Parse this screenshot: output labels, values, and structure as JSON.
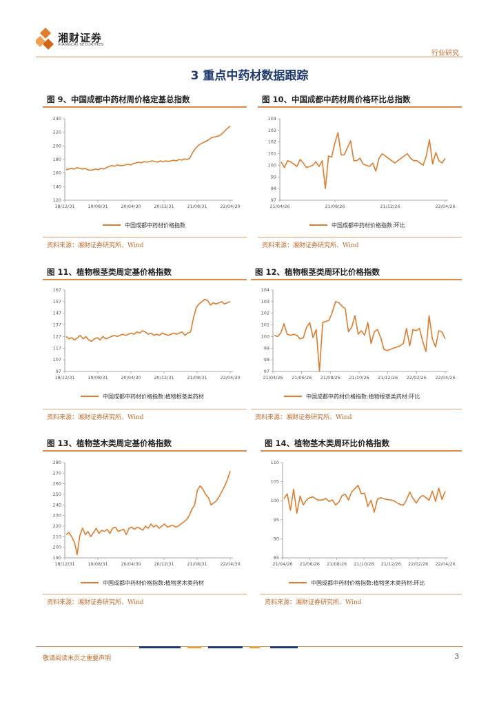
{
  "header": {
    "logo_cn": "湘财证券",
    "logo_en": "XIANGCAI SECURITIES",
    "category": "行业研究"
  },
  "section_title": "3 重点中药材数据跟踪",
  "footer": {
    "disclaimer": "敬请阅读末页之重要声明",
    "page_number": "3"
  },
  "colors": {
    "line": "#e07b2a",
    "rule": "#d98a4a",
    "source": "#c06a2a",
    "title": "#1f3b73"
  },
  "figures": [
    {
      "title": "图 9、中国成都中药材周价格定基总指数",
      "source": "资料来源：湘财证券研究所、Wind"
    },
    {
      "title": "图 10、中国成都中药材周价格环比总指数",
      "source": "资料来源：湘财证券研究所、Wind"
    },
    {
      "title": "图 11、植物根茎类周定基价格指数",
      "source": "资料来源：湘财证券研究所、Wind"
    },
    {
      "title": "图 12、植物根茎类周环比价格指数",
      "source": "资料来源：湘财证券研究所、Wind"
    },
    {
      "title": "图 13、植物茎木类周定基价格指数",
      "source": "资料来源：湘财证券研究所、Wind"
    },
    {
      "title": "图 14、植物茎木类周环比价格指数",
      "source": "资料来源：湘财证券研究所、Wind"
    }
  ],
  "chart_data": [
    {
      "type": "line",
      "x_ticks": [
        "18/12/31",
        "19/08/31",
        "20/04/30",
        "20/12/31",
        "21/08/31",
        "22/04/30"
      ],
      "y_ticks": [
        120,
        140,
        160,
        180,
        200,
        220,
        240
      ],
      "ylim": [
        120,
        240
      ],
      "legend": "中国成都中药材价格指数",
      "values": [
        165,
        166,
        167,
        166,
        168,
        167,
        166,
        167,
        165,
        164,
        165,
        166,
        165,
        167,
        166,
        168,
        170,
        171,
        170,
        172,
        171,
        171,
        172,
        173,
        172,
        174,
        175,
        176,
        175,
        177,
        176,
        177,
        178,
        177,
        176,
        178,
        177,
        178,
        177,
        178,
        179,
        178,
        180,
        179,
        181,
        180,
        182,
        190,
        196,
        200,
        203,
        205,
        207,
        209,
        212,
        213,
        214,
        215,
        218,
        222,
        226,
        229
      ]
    },
    {
      "type": "line",
      "x_ticks": [
        "21/04/26",
        "21/08/26",
        "21/12/26",
        "22/04/26"
      ],
      "y_ticks": [
        97,
        98,
        99,
        100,
        101,
        102,
        103,
        104
      ],
      "ylim": [
        97,
        104
      ],
      "legend": "中国成都中药材价格指数:环比",
      "values": [
        100.3,
        99.8,
        100.4,
        100.3,
        100.1,
        99.9,
        100.5,
        100.2,
        99.8,
        99.9,
        100.0,
        100.3,
        99.9,
        100.4,
        98.0,
        100.8,
        100.7,
        101.9,
        102.8,
        100.9,
        100.9,
        101.5,
        102.1,
        100.4,
        100.4,
        100.6,
        100.1,
        100.0,
        99.9,
        100.2,
        99.5,
        100.6,
        101.0,
        100.8,
        100.6,
        100.4,
        100.2,
        100.4,
        100.6,
        100.8,
        101.0,
        100.6,
        100.4,
        100.4,
        100.2,
        100.0,
        100.8,
        102.2,
        100.1,
        101.1,
        100.4,
        100.2,
        100.6
      ]
    },
    {
      "type": "line",
      "x_ticks": [
        "18/12/31",
        "19/08/31",
        "20/04/30",
        "20/12/31",
        "21/08/31",
        "22/04/30"
      ],
      "y_ticks": [
        97,
        107,
        117,
        127,
        137,
        147,
        157,
        167
      ],
      "ylim": [
        97,
        167
      ],
      "legend": "中国成都中药材价格指数:植物根茎类药材",
      "values": [
        127,
        125,
        126,
        124,
        126,
        128,
        125,
        127,
        124,
        123,
        125,
        126,
        124,
        127,
        125,
        126,
        127,
        128,
        127,
        128,
        129,
        128,
        129,
        130,
        129,
        131,
        130,
        132,
        131,
        129,
        130,
        128,
        129,
        128,
        130,
        129,
        128,
        129,
        130,
        129,
        130,
        131,
        128,
        130,
        131,
        143,
        152,
        155,
        157,
        159,
        158,
        154,
        156,
        155,
        156,
        157,
        155,
        156,
        157
      ]
    },
    {
      "type": "line",
      "x_ticks": [
        "21/04/26",
        "21/06/26",
        "21/08/26",
        "21/10/26",
        "21/12/26",
        "22/02/26",
        "22/04/26"
      ],
      "y_ticks": [
        97,
        98,
        99,
        100,
        101,
        102,
        103,
        104
      ],
      "ylim": [
        97,
        104
      ],
      "legend": "中国成都中药材价格指数:植物根茎类药材:环比",
      "values": [
        100.1,
        100.0,
        100.3,
        101.1,
        100.2,
        100.1,
        100.2,
        100.1,
        99.8,
        99.9,
        100.8,
        101.2,
        99.9,
        100.6,
        97.0,
        101.2,
        101.3,
        101.4,
        102.1,
        103.0,
        102.9,
        102.6,
        102.4,
        100.4,
        100.8,
        101.8,
        100.2,
        100.5,
        100.1,
        101.2,
        99.4,
        100.4,
        100.6,
        99.9,
        98.9,
        98.8,
        98.9,
        99.0,
        99.1,
        99.2,
        99.4,
        100.7,
        99.2,
        100.6,
        100.5,
        100.7,
        99.6,
        98.7,
        101.8,
        99.8,
        99.1,
        100.5,
        100.4,
        99.8
      ]
    },
    {
      "type": "line",
      "x_ticks": [
        "18/12/31",
        "19/08/31",
        "20/04/30",
        "20/12/31",
        "21/08/31",
        "22/04/30"
      ],
      "y_ticks": [
        190,
        200,
        210,
        220,
        230,
        240,
        250,
        260,
        270,
        280
      ],
      "ylim": [
        190,
        280
      ],
      "legend": "中国成都中药材价格指数:植物茎木类药材",
      "values": [
        212,
        214,
        210,
        205,
        193,
        211,
        218,
        212,
        215,
        210,
        214,
        218,
        213,
        216,
        215,
        217,
        213,
        218,
        219,
        215,
        216,
        217,
        212,
        218,
        219,
        217,
        219,
        218,
        216,
        220,
        218,
        222,
        219,
        221,
        218,
        220,
        222,
        219,
        220,
        221,
        219,
        220,
        222,
        224,
        226,
        230,
        236,
        240,
        254,
        258,
        255,
        250,
        247,
        240,
        242,
        244,
        248,
        253,
        258,
        264,
        272
      ]
    },
    {
      "type": "line",
      "x_ticks": [
        "21/04/26",
        "21/06/26",
        "21/08/26",
        "21/10/26",
        "21/12/26",
        "22/02/26",
        "22/04/26"
      ],
      "y_ticks": [
        85,
        90,
        95,
        100,
        105,
        110
      ],
      "ylim": [
        85,
        110
      ],
      "legend": "中国成都中药材价格指数:植物茎木类药材:环比",
      "values": [
        100.5,
        101.8,
        97.5,
        103.0,
        96.7,
        101.2,
        98.9,
        100.2,
        100.8,
        101.0,
        100.4,
        100.1,
        100.2,
        100.6,
        99.8,
        100.2,
        98.9,
        99.6,
        101.3,
        101.7,
        100.2,
        102.3,
        103.2,
        104.0,
        101.8,
        102.0,
        98.5,
        100.1,
        97.0,
        100.4,
        100.8,
        100.5,
        100.3,
        100.2,
        100.0,
        99.5,
        99.0,
        98.8,
        100.2,
        102.3,
        100.6,
        99.4,
        100.7,
        101.4,
        100.8,
        100.1,
        102.5,
        99.8,
        103.3,
        100.3,
        102.5
      ]
    }
  ]
}
